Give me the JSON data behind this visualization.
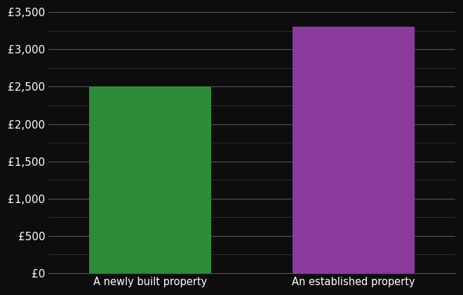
{
  "categories": [
    "A newly built property",
    "An established property"
  ],
  "values": [
    2500,
    3300
  ],
  "bar_colors": [
    "#2e8b3a",
    "#8b3a9e"
  ],
  "background_color": "#0d0d0d",
  "text_color": "#ffffff",
  "major_grid_color": "#555555",
  "minor_grid_color": "#333333",
  "ylim": [
    0,
    3500
  ],
  "yticks_major": [
    0,
    500,
    1000,
    1500,
    2000,
    2500,
    3000,
    3500
  ],
  "yticks_minor": [
    250,
    750,
    1250,
    1750,
    2250,
    2750,
    3250
  ],
  "ytick_labels": [
    "£0",
    "£500",
    "£1,000",
    "£1,500",
    "£2,000",
    "£2,500",
    "£3,000",
    "£3,500"
  ],
  "tick_fontsize": 11,
  "label_fontsize": 10.5
}
